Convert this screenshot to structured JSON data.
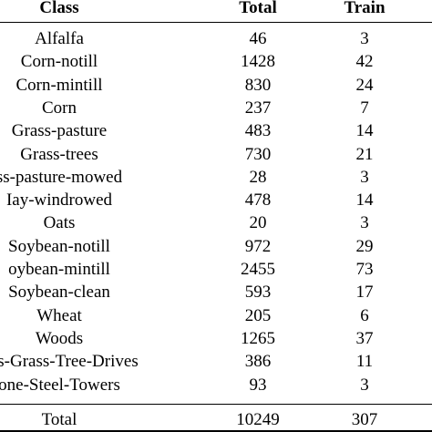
{
  "table": {
    "header": [
      "Class",
      "Total",
      "Train"
    ],
    "rows": [
      [
        "Alfalfa",
        "46",
        "3"
      ],
      [
        "Corn-notill",
        "1428",
        "42"
      ],
      [
        "Corn-mintill",
        "830",
        "24"
      ],
      [
        "Corn",
        "237",
        "7"
      ],
      [
        "Grass-pasture",
        "483",
        "14"
      ],
      [
        "Grass-trees",
        "730",
        "21"
      ],
      [
        "ss-pasture-mowed",
        "28",
        "3"
      ],
      [
        "Iay-windrowed",
        "478",
        "14"
      ],
      [
        "Oats",
        "20",
        "3"
      ],
      [
        "Soybean-notill",
        "972",
        "29"
      ],
      [
        "oybean-mintill",
        "2455",
        "73"
      ],
      [
        "Soybean-clean",
        "593",
        "17"
      ],
      [
        "Wheat",
        "205",
        "6"
      ],
      [
        "Woods",
        "1265",
        "37"
      ],
      [
        "ngs-Grass-Tree-Drives",
        "386",
        "11"
      ],
      [
        "one-Steel-Towers",
        "93",
        "3"
      ]
    ],
    "total": [
      "Total",
      "10249",
      "307"
    ]
  }
}
